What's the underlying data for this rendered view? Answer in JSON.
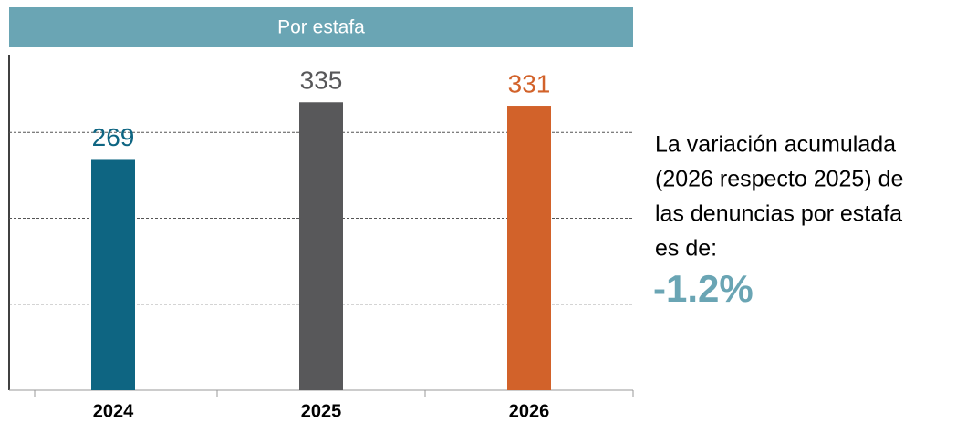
{
  "chart_data": {
    "type": "bar",
    "title": "Por estafa",
    "categories": [
      "2024",
      "2025",
      "2026"
    ],
    "values": [
      269,
      335,
      331
    ],
    "colors": [
      "#0e6582",
      "#58585a",
      "#d2622a"
    ],
    "ylim": [
      0,
      400
    ],
    "yticks": [
      100,
      200,
      300
    ],
    "grid": true,
    "annotation_lines": [
      "La variación acumulada",
      "(2026 respecto 2025) de",
      "las denuncias por estafa",
      "es de:"
    ],
    "highlight": "-1.2%"
  }
}
